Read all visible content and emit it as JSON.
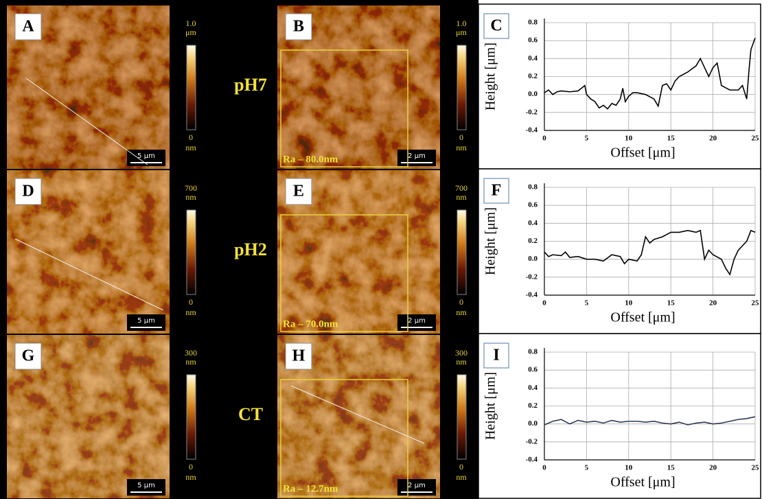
{
  "rows": [
    {
      "label": "pH7",
      "afm": [
        {
          "letter": "A",
          "scale_bar": "5 μm"
        },
        {
          "letter": "B",
          "scale_bar": "2 μm",
          "roughness": "Ra – 80.0nm"
        }
      ],
      "colorbar": {
        "max": "1.0",
        "max_unit": "μm",
        "min": "0",
        "min_unit": "nm"
      }
    },
    {
      "label": "pH2",
      "afm": [
        {
          "letter": "D",
          "scale_bar": "5 μm"
        },
        {
          "letter": "E",
          "scale_bar": "2 μm",
          "roughness": "Ra – 70.0nm"
        }
      ],
      "colorbar": {
        "max": "700",
        "max_unit": "nm",
        "min": "0",
        "min_unit": "nm"
      }
    },
    {
      "label": "CT",
      "afm": [
        {
          "letter": "G",
          "scale_bar": "5 μm"
        },
        {
          "letter": "H",
          "scale_bar": "2 μm",
          "roughness": "Ra – 12.7nm"
        }
      ],
      "colorbar": {
        "max": "300",
        "max_unit": "nm",
        "min": "0",
        "min_unit": "nm"
      }
    }
  ],
  "chart_data": [
    {
      "type": "line",
      "panel_label": "C",
      "x_label": "Offset [μm]",
      "y_label": "Height [μm]",
      "x": [
        0,
        0.5,
        1,
        1.5,
        2,
        3,
        4,
        4.8,
        5,
        5.5,
        6,
        6.5,
        7,
        7.5,
        8,
        8.5,
        9,
        9.3,
        9.6,
        10,
        10.5,
        11,
        12,
        13,
        13.5,
        14,
        14.5,
        15,
        15.5,
        16,
        17,
        18,
        18.5,
        19,
        19.5,
        20,
        20.5,
        21,
        22,
        23,
        23.5,
        24,
        24.3,
        24.5,
        25
      ],
      "series": [
        {
          "color": "#000000",
          "values": [
            0.02,
            0.05,
            0.0,
            0.03,
            0.04,
            0.03,
            0.04,
            0.1,
            0.0,
            -0.05,
            -0.08,
            -0.15,
            -0.12,
            -0.16,
            -0.1,
            -0.12,
            -0.05,
            0.07,
            -0.08,
            -0.02,
            0.02,
            0.02,
            0.0,
            -0.05,
            -0.13,
            0.1,
            0.12,
            0.05,
            0.15,
            0.2,
            0.25,
            0.32,
            0.4,
            0.3,
            0.2,
            0.3,
            0.35,
            0.1,
            0.05,
            0.05,
            0.1,
            -0.05,
            0.3,
            0.5,
            0.63
          ]
        }
      ],
      "xlim": [
        0,
        25
      ],
      "ylim": [
        -0.4,
        0.8
      ],
      "xticks": [
        0,
        5,
        10,
        15,
        20,
        25
      ],
      "yticks": [
        -0.4,
        -0.2,
        {
          "value": 0,
          "label": "0.0"
        },
        0.2,
        0.4,
        0.6,
        0.8
      ],
      "grid": true
    },
    {
      "type": "line",
      "panel_label": "F",
      "x_label": "Offset [μm]",
      "y_label": "Height [μm]",
      "x": [
        0,
        0.5,
        1,
        2,
        2.5,
        3,
        4,
        5,
        6,
        7,
        8,
        9,
        9.5,
        10,
        11,
        11.5,
        12,
        12.5,
        13,
        14,
        15,
        16,
        17,
        18,
        18.5,
        19,
        19.5,
        20,
        21,
        21.5,
        22,
        22.5,
        23,
        24,
        24.5,
        25
      ],
      "series": [
        {
          "color": "#000000",
          "values": [
            0.08,
            0.03,
            0.05,
            0.04,
            0.08,
            0.02,
            0.03,
            0.0,
            0.0,
            -0.02,
            0.05,
            0.03,
            -0.05,
            0.0,
            -0.02,
            0.05,
            0.25,
            0.18,
            0.22,
            0.25,
            0.3,
            0.3,
            0.32,
            0.3,
            0.32,
            0.0,
            0.1,
            0.05,
            0.0,
            -0.1,
            -0.17,
            0.0,
            0.1,
            0.2,
            0.32,
            0.3
          ]
        }
      ],
      "xlim": [
        0,
        25
      ],
      "ylim": [
        -0.4,
        0.8
      ],
      "xticks": [
        0,
        5,
        10,
        15,
        20,
        25
      ],
      "yticks": [
        -0.4,
        -0.2,
        {
          "value": 0,
          "label": "0.0"
        },
        0.2,
        0.4,
        0.6,
        0.8
      ],
      "grid": true
    },
    {
      "type": "line",
      "panel_label": "I",
      "x_label": "Offset [μm]",
      "y_label": "Height [μm]",
      "x": [
        0,
        1,
        2,
        3,
        4,
        5,
        6,
        7,
        8,
        9,
        10,
        11,
        12,
        13,
        14,
        15,
        16,
        17,
        18,
        19,
        20,
        21,
        22,
        23,
        24,
        25
      ],
      "series": [
        {
          "color": "#2b3a55",
          "values": [
            -0.01,
            0.03,
            0.05,
            0.0,
            0.04,
            0.02,
            0.03,
            0.01,
            0.04,
            0.02,
            0.03,
            0.03,
            0.02,
            0.03,
            0.01,
            0.0,
            0.02,
            -0.01,
            0.01,
            0.02,
            0.0,
            0.01,
            0.03,
            0.05,
            0.06,
            0.08
          ]
        }
      ],
      "xlim": [
        0,
        25
      ],
      "ylim": [
        -0.4,
        0.8
      ],
      "xticks": [
        0,
        5,
        10,
        15,
        20,
        25
      ],
      "yticks": [
        -0.4,
        -0.2,
        {
          "value": 0,
          "label": "0.0"
        },
        0.2,
        0.4,
        0.6,
        0.8
      ],
      "grid": true
    }
  ]
}
